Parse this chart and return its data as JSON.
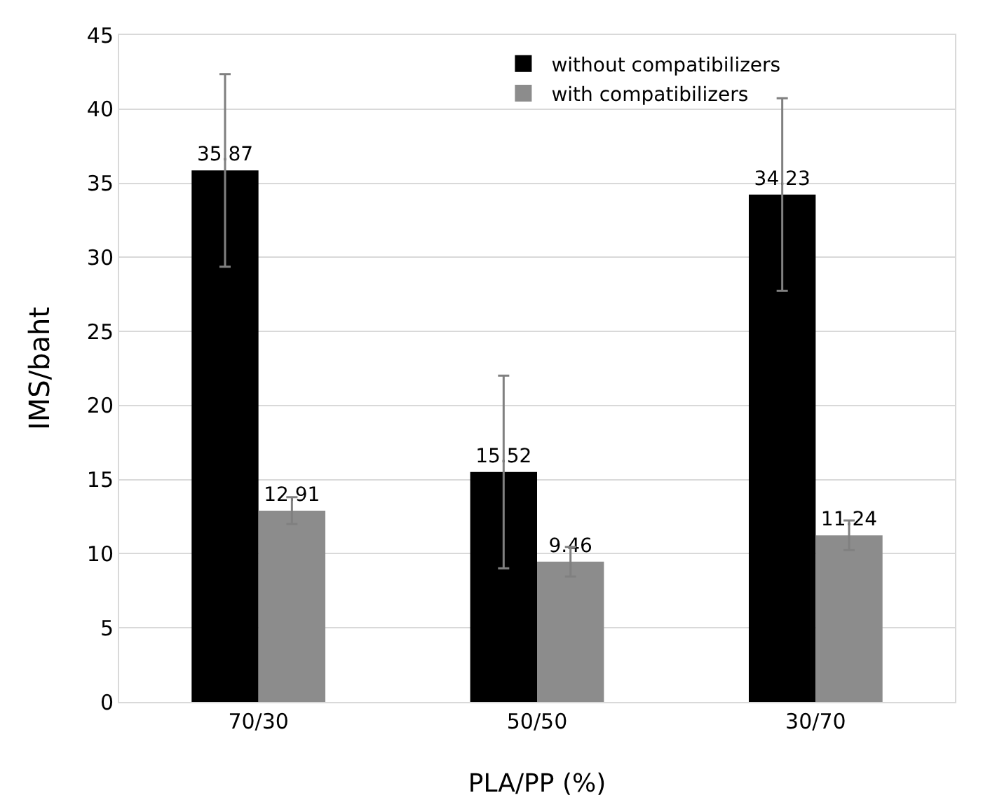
{
  "chart_data": {
    "type": "bar",
    "xlabel": "PLA/PP (%)",
    "ylabel": "IMS/baht",
    "categories": [
      "70/30",
      "50/50",
      "30/70"
    ],
    "series": [
      {
        "name": "without compatibilizers",
        "color": "#000000",
        "values": [
          35.87,
          15.52,
          34.23
        ],
        "errors": [
          6.5,
          6.5,
          6.5
        ]
      },
      {
        "name": "with compatibilizers",
        "color": "#8c8c8c",
        "values": [
          12.91,
          9.46,
          11.24
        ],
        "errors": [
          0.9,
          1.0,
          1.0
        ]
      }
    ],
    "ylim": [
      0,
      45
    ],
    "yticks": [
      0,
      5,
      10,
      15,
      20,
      25,
      30,
      35,
      40,
      45
    ],
    "grid": "y",
    "legend": "top",
    "data_labels": true
  }
}
